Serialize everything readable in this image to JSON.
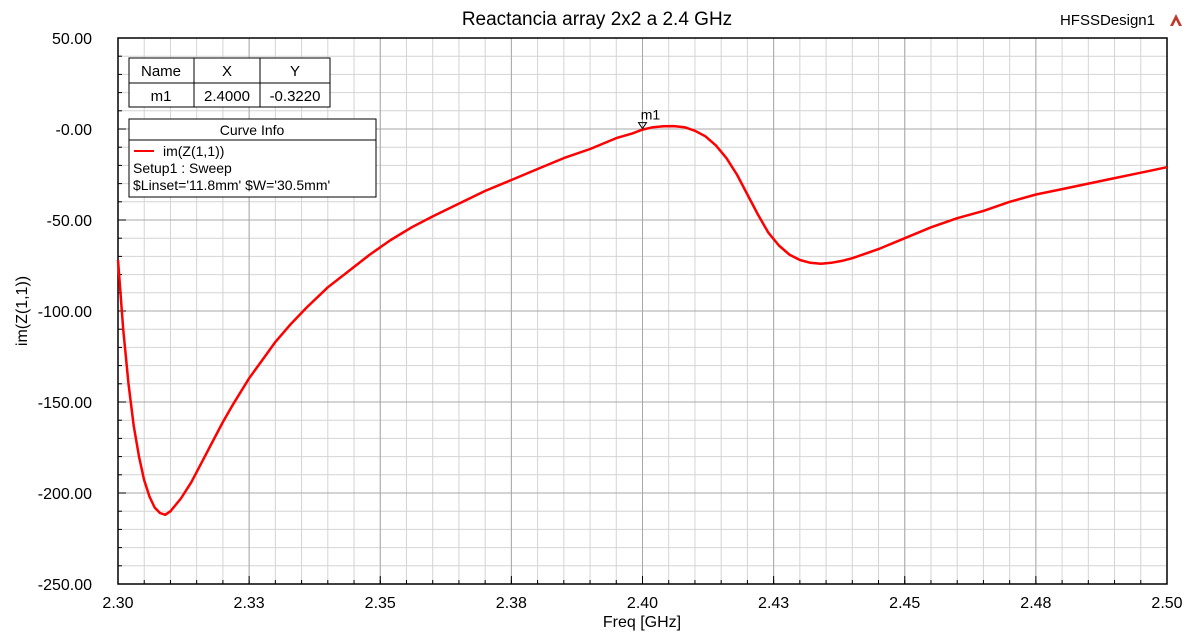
{
  "design_name": "HFSSDesign1",
  "chart_data": {
    "type": "line",
    "title": "Reactancia array 2x2 a 2.4 GHz",
    "xlabel": "Freq [GHz]",
    "ylabel": "im(Z(1,1))",
    "xlim": [
      2.3,
      2.5
    ],
    "ylim": [
      -250,
      50
    ],
    "x_ticks": [
      2.3,
      2.325,
      2.35,
      2.375,
      2.4,
      2.425,
      2.45,
      2.475,
      2.5
    ],
    "x_tick_labels": [
      "2.30",
      "2.33",
      "2.35",
      "2.38",
      "2.40",
      "2.43",
      "2.45",
      "2.48",
      "2.50"
    ],
    "y_ticks": [
      50,
      0,
      -50,
      -100,
      -150,
      -200,
      -250
    ],
    "y_tick_labels": [
      "50.00",
      "-0.00",
      "-50.00",
      "-100.00",
      "-150.00",
      "-200.00",
      "-250.00"
    ],
    "grid": true,
    "series": [
      {
        "name": "im(Z(1,1))",
        "color": "#ff0000",
        "x": [
          2.3,
          2.301,
          2.302,
          2.303,
          2.304,
          2.305,
          2.306,
          2.307,
          2.308,
          2.309,
          2.31,
          2.312,
          2.314,
          2.316,
          2.318,
          2.32,
          2.322,
          2.325,
          2.328,
          2.33,
          2.333,
          2.336,
          2.34,
          2.344,
          2.348,
          2.352,
          2.356,
          2.36,
          2.365,
          2.37,
          2.375,
          2.38,
          2.385,
          2.39,
          2.395,
          2.398,
          2.4,
          2.402,
          2.404,
          2.406,
          2.408,
          2.41,
          2.412,
          2.414,
          2.416,
          2.418,
          2.42,
          2.422,
          2.424,
          2.426,
          2.428,
          2.43,
          2.432,
          2.434,
          2.436,
          2.438,
          2.44,
          2.442,
          2.445,
          2.45,
          2.455,
          2.46,
          2.465,
          2.47,
          2.475,
          2.48,
          2.485,
          2.49,
          2.495,
          2.5
        ],
        "values": [
          -72,
          -110,
          -140,
          -163,
          -180,
          -193,
          -202,
          -208,
          -211,
          -212,
          -210,
          -203,
          -194,
          -183,
          -172,
          -161,
          -151,
          -137,
          -125,
          -117,
          -107,
          -98,
          -87,
          -78,
          -69,
          -61,
          -54,
          -48,
          -41,
          -34,
          -28,
          -22,
          -16,
          -11,
          -5,
          -2.5,
          -0.32,
          1.0,
          1.5,
          1.6,
          1.0,
          -1,
          -4,
          -9,
          -16,
          -25,
          -36,
          -47,
          -57,
          -64,
          -69,
          -72,
          -73.5,
          -74,
          -73.5,
          -72.5,
          -71,
          -69,
          -66,
          -60,
          -54,
          -49,
          -45,
          -40,
          -36,
          -33,
          -30,
          -27,
          -24,
          -21
        ]
      }
    ],
    "markers": [
      {
        "name": "m1",
        "x": 2.4,
        "y": -0.322
      }
    ],
    "marker_table": {
      "headers": [
        "Name",
        "X",
        "Y"
      ],
      "rows": [
        [
          "m1",
          "2.4000",
          "-0.3220"
        ]
      ]
    },
    "curve_info": {
      "title": "Curve Info",
      "entry": "im(Z(1,1))",
      "line1": "Setup1 : Sweep",
      "line2": "$Linset='11.8mm' $W='30.5mm'"
    }
  }
}
